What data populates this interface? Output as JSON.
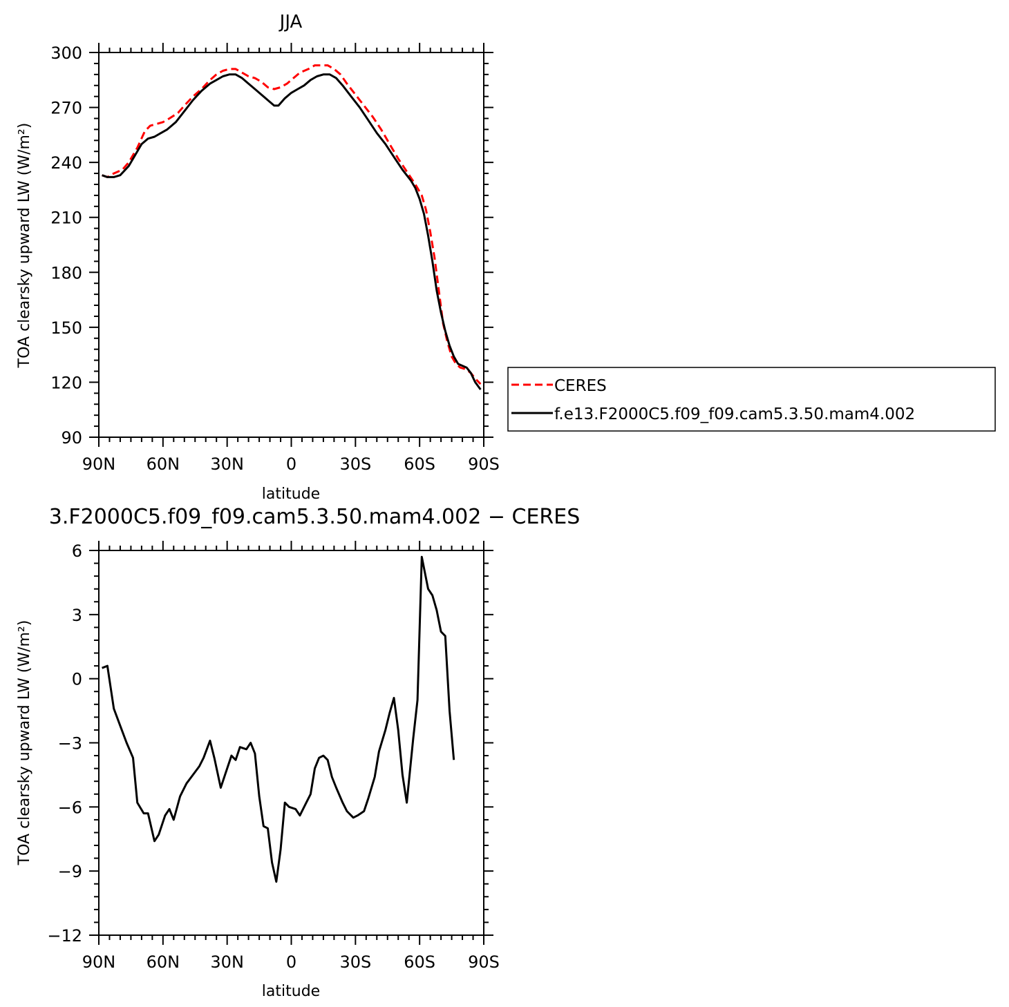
{
  "chart_data": [
    {
      "type": "line",
      "title": "JJA",
      "xlabel": "latitude",
      "ylabel": "TOA clearsky upward LW (W/m²)",
      "xlim": [
        -90,
        90
      ],
      "ylim": [
        90,
        300
      ],
      "x_ticks": [
        -90,
        -60,
        -30,
        0,
        30,
        60,
        90
      ],
      "x_tick_labels": [
        "90N",
        "60N",
        "30N",
        "0",
        "30S",
        "60S",
        "90S"
      ],
      "y_ticks": [
        90,
        120,
        150,
        180,
        210,
        240,
        270,
        300
      ],
      "y_tick_labels": [
        "90",
        "120",
        "150",
        "180",
        "210",
        "240",
        "270",
        "300"
      ],
      "legend": "right",
      "series": [
        {
          "name": "CERES",
          "color": "#ff0000",
          "dash": "dashed",
          "points": [
            [
              -88.5,
              233
            ],
            [
              -86,
              232
            ],
            [
              -83,
              234
            ],
            [
              -79,
              236
            ],
            [
              -76,
              240
            ],
            [
              -72,
              248
            ],
            [
              -68.5,
              257
            ],
            [
              -66,
              260
            ],
            [
              -63,
              261
            ],
            [
              -60,
              262
            ],
            [
              -57,
              264
            ],
            [
              -53,
              267
            ],
            [
              -50,
              271
            ],
            [
              -46,
              276
            ],
            [
              -42,
              280
            ],
            [
              -38,
              285
            ],
            [
              -35,
              288
            ],
            [
              -32,
              290
            ],
            [
              -29,
              291
            ],
            [
              -26,
              291
            ],
            [
              -23,
              289
            ],
            [
              -20,
              287
            ],
            [
              -17,
              286
            ],
            [
              -14,
              284
            ],
            [
              -11,
              281
            ],
            [
              -8,
              280
            ],
            [
              -5,
              281
            ],
            [
              -2,
              283
            ],
            [
              1,
              286
            ],
            [
              4,
              289
            ],
            [
              8,
              291
            ],
            [
              11,
              293
            ],
            [
              14,
              293
            ],
            [
              17,
              293
            ],
            [
              20,
              291
            ],
            [
              23,
              288
            ],
            [
              26,
              283
            ],
            [
              30,
              277
            ],
            [
              34,
              271
            ],
            [
              38,
              265
            ],
            [
              42,
              258
            ],
            [
              46,
              250
            ],
            [
              50,
              242
            ],
            [
              54,
              235
            ],
            [
              58,
              228
            ],
            [
              61,
              222
            ],
            [
              63,
              214
            ],
            [
              65,
              202
            ],
            [
              67,
              188
            ],
            [
              69,
              170
            ],
            [
              71,
              152
            ],
            [
              73,
              142
            ],
            [
              75,
              134
            ],
            [
              77,
              130
            ],
            [
              79,
              128
            ],
            [
              82,
              127
            ],
            [
              84,
              125
            ],
            [
              86,
              122
            ],
            [
              88.5,
              119
            ]
          ]
        },
        {
          "name": "f.e13.F2000C5.f09_f09.cam5.3.50.mam4.002",
          "color": "#000000",
          "dash": "solid",
          "points": [
            [
              -88.5,
              233
            ],
            [
              -86,
              232
            ],
            [
              -83,
              232
            ],
            [
              -80,
              233
            ],
            [
              -76,
              238
            ],
            [
              -73,
              244
            ],
            [
              -70,
              250
            ],
            [
              -67,
              253
            ],
            [
              -64,
              254
            ],
            [
              -61,
              256
            ],
            [
              -58,
              258
            ],
            [
              -54,
              262
            ],
            [
              -50,
              268
            ],
            [
              -46,
              274
            ],
            [
              -42,
              279
            ],
            [
              -38,
              283
            ],
            [
              -35,
              285
            ],
            [
              -32,
              287
            ],
            [
              -29,
              288
            ],
            [
              -26,
              288
            ],
            [
              -23,
              286
            ],
            [
              -20,
              283
            ],
            [
              -17,
              280
            ],
            [
              -14,
              277
            ],
            [
              -11,
              274
            ],
            [
              -8,
              271
            ],
            [
              -6,
              271
            ],
            [
              -3,
              275
            ],
            [
              0,
              278
            ],
            [
              3,
              280
            ],
            [
              6,
              282
            ],
            [
              9,
              285
            ],
            [
              12,
              287
            ],
            [
              15,
              288
            ],
            [
              18,
              288
            ],
            [
              21,
              286
            ],
            [
              24,
              282
            ],
            [
              28,
              276
            ],
            [
              32,
              270
            ],
            [
              36,
              263
            ],
            [
              40,
              256
            ],
            [
              44,
              250
            ],
            [
              48,
              243
            ],
            [
              52,
              236
            ],
            [
              56,
              230
            ],
            [
              58,
              226
            ],
            [
              60,
              220
            ],
            [
              62,
              212
            ],
            [
              64,
              200
            ],
            [
              66,
              186
            ],
            [
              68,
              170
            ],
            [
              70,
              158
            ],
            [
              72,
              148
            ],
            [
              74,
              140
            ],
            [
              76,
              134
            ],
            [
              78,
              130
            ],
            [
              80,
              129
            ],
            [
              82,
              128
            ],
            [
              84,
              125
            ],
            [
              86,
              120
            ],
            [
              88.5,
              116
            ]
          ]
        }
      ]
    },
    {
      "type": "line",
      "title": "3.F2000C5.f09_f09.cam5.3.50.mam4.002 − CERES",
      "xlabel": "latitude",
      "ylabel": "TOA clearsky upward LW (W/m²)",
      "xlim": [
        -90,
        90
      ],
      "ylim": [
        -12,
        6
      ],
      "x_ticks": [
        -90,
        -60,
        -30,
        0,
        30,
        60,
        90
      ],
      "x_tick_labels": [
        "90N",
        "60N",
        "30N",
        "0",
        "30S",
        "60S",
        "90S"
      ],
      "y_ticks": [
        -12,
        -9,
        -6,
        -3,
        0,
        3,
        6
      ],
      "y_tick_labels": [
        "−12",
        "−9",
        "−6",
        "−3",
        "0",
        "3",
        "6"
      ],
      "series": [
        {
          "color": "#000000",
          "dash": "solid",
          "points": [
            [
              -88.5,
              0.5
            ],
            [
              -86,
              0.6
            ],
            [
              -83,
              -1.4
            ],
            [
              -80,
              -2.2
            ],
            [
              -77,
              -3.0
            ],
            [
              -74,
              -3.7
            ],
            [
              -72,
              -5.8
            ],
            [
              -69,
              -6.3
            ],
            [
              -67,
              -6.3
            ],
            [
              -64,
              -7.6
            ],
            [
              -62,
              -7.3
            ],
            [
              -59,
              -6.4
            ],
            [
              -57,
              -6.1
            ],
            [
              -55,
              -6.6
            ],
            [
              -52,
              -5.5
            ],
            [
              -49,
              -4.9
            ],
            [
              -46,
              -4.5
            ],
            [
              -43,
              -4.1
            ],
            [
              -41,
              -3.7
            ],
            [
              -38,
              -2.9
            ],
            [
              -36,
              -3.7
            ],
            [
              -33,
              -5.1
            ],
            [
              -31,
              -4.5
            ],
            [
              -28,
              -3.6
            ],
            [
              -26,
              -3.8
            ],
            [
              -24,
              -3.2
            ],
            [
              -21,
              -3.3
            ],
            [
              -19,
              -3.0
            ],
            [
              -17,
              -3.5
            ],
            [
              -15,
              -5.5
            ],
            [
              -13,
              -6.9
            ],
            [
              -11,
              -7.0
            ],
            [
              -9,
              -8.6
            ],
            [
              -7,
              -9.5
            ],
            [
              -5,
              -8.0
            ],
            [
              -3,
              -5.8
            ],
            [
              -1,
              -6.0
            ],
            [
              2,
              -6.1
            ],
            [
              4,
              -6.4
            ],
            [
              7,
              -5.8
            ],
            [
              9,
              -5.4
            ],
            [
              11,
              -4.2
            ],
            [
              13,
              -3.7
            ],
            [
              15,
              -3.6
            ],
            [
              17,
              -3.8
            ],
            [
              19,
              -4.6
            ],
            [
              21,
              -5.1
            ],
            [
              24,
              -5.8
            ],
            [
              26,
              -6.2
            ],
            [
              29,
              -6.5
            ],
            [
              31,
              -6.4
            ],
            [
              34,
              -6.2
            ],
            [
              36,
              -5.6
            ],
            [
              39,
              -4.6
            ],
            [
              41,
              -3.4
            ],
            [
              44,
              -2.4
            ],
            [
              46,
              -1.6
            ],
            [
              48,
              -0.9
            ],
            [
              50,
              -2.4
            ],
            [
              52,
              -4.5
            ],
            [
              54,
              -5.8
            ],
            [
              57,
              -2.8
            ],
            [
              59,
              -1.0
            ],
            [
              61,
              5.7
            ],
            [
              64,
              4.2
            ],
            [
              66,
              3.9
            ],
            [
              68,
              3.2
            ],
            [
              70,
              2.2
            ],
            [
              72,
              2.0
            ],
            [
              74,
              -1.5
            ],
            [
              76,
              -3.8
            ]
          ]
        }
      ]
    }
  ]
}
